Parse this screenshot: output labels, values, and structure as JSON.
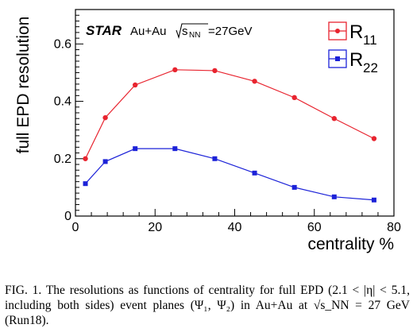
{
  "chart_data": {
    "type": "line",
    "experiment": "STAR",
    "system": "Au+Au",
    "energy_sqrt": "s",
    "energy_sub": "NN",
    "energy_value": "=27GeV",
    "xlabel": "centrality %",
    "ylabel": "full EPD resolution",
    "xlim": [
      0,
      80
    ],
    "ylim": [
      0,
      0.72
    ],
    "x_ticks": [
      0,
      20,
      40,
      60,
      80
    ],
    "y_ticks": [
      0,
      0.2,
      0.4,
      0.6
    ],
    "x_tick_labels": [
      "0",
      "20",
      "40",
      "60",
      "80"
    ],
    "y_tick_labels": [
      "0",
      "0.2",
      "0.4",
      "0.6"
    ],
    "grid": false,
    "legend_position": "top-right",
    "series": [
      {
        "name": "R",
        "name_sub": "11",
        "color": "#e8242f",
        "marker": "circle",
        "x": [
          2.5,
          7.5,
          15,
          25,
          35,
          45,
          55,
          65,
          75
        ],
        "y": [
          0.2,
          0.343,
          0.457,
          0.51,
          0.507,
          0.47,
          0.413,
          0.34,
          0.27
        ]
      },
      {
        "name": "R",
        "name_sub": "22",
        "color": "#1c22d8",
        "marker": "square",
        "x": [
          2.5,
          7.5,
          15,
          25,
          35,
          45,
          55,
          65,
          75
        ],
        "y": [
          0.113,
          0.19,
          0.235,
          0.235,
          0.2,
          0.15,
          0.1,
          0.067,
          0.056
        ]
      }
    ]
  },
  "caption": {
    "text": "FIG. 1. The resolutions as functions of centrality for full EPD (2.1 < |η| < 5.1, including both sides) event planes (Ψ₁, Ψ₂) in Au+Au at √s_NN = 27 GeV (Run18)."
  }
}
